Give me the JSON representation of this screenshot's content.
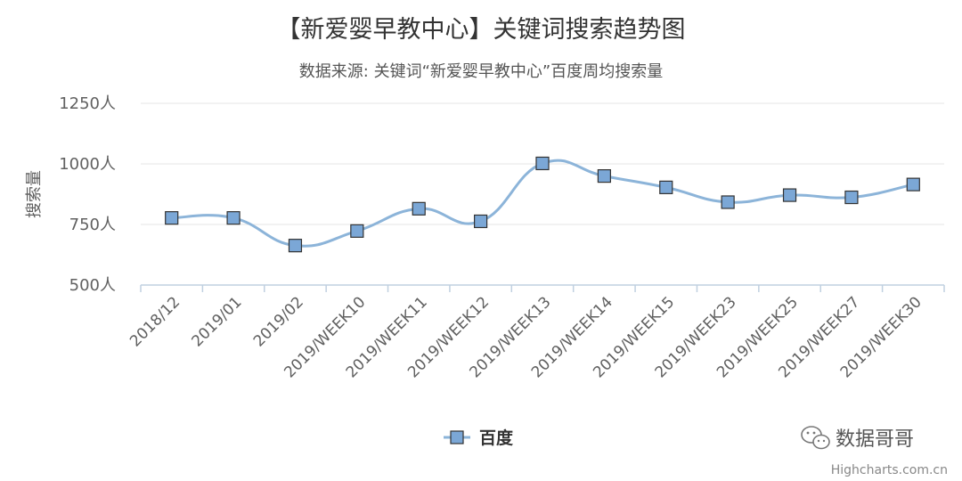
{
  "chart_data": {
    "type": "line",
    "title": "【新爱婴早教中心】关键词搜索趋势图",
    "subtitle": "数据来源: 关键词“新爱婴早教中心”百度周均搜索量",
    "ylabel": "搜索量",
    "xlabel": "",
    "ylim": [
      500,
      1250
    ],
    "yticks": [
      500,
      750,
      1000,
      1250
    ],
    "ytick_suffix": "人",
    "categories": [
      "2018/12",
      "2019/01",
      "2019/02",
      "2019/WEEK10",
      "2019/WEEK11",
      "2019/WEEK12",
      "2019/WEEK13",
      "2019/WEEK14",
      "2019/WEEK15",
      "2019/WEEK23",
      "2019/WEEK25",
      "2019/WEEK27",
      "2019/WEEK30"
    ],
    "series": [
      {
        "name": "百度",
        "values": [
          777,
          777,
          663,
          723,
          815,
          763,
          1002,
          950,
          903,
          842,
          871,
          862,
          915
        ],
        "color": "#8cb4d9",
        "marker_color": "#7ba7d6",
        "marker": "square"
      }
    ],
    "grid": true,
    "smooth": true,
    "legend_position": "bottom-center"
  },
  "watermark": {
    "text": "数据哥哥",
    "icon": "wechat-icon"
  },
  "credits": "Highcharts.com.cn"
}
